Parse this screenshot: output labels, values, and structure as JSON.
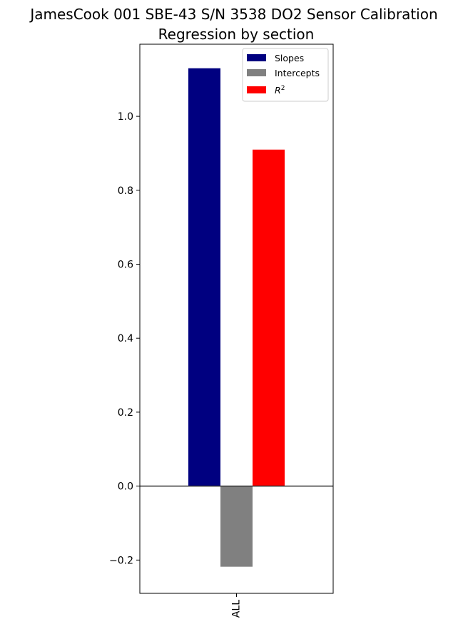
{
  "chart_data": {
    "type": "bar",
    "title": "JamesCook 001 SBE-43 S/N 3538 DO2 Sensor Calibration",
    "subtitle": "Regression by section",
    "categories": [
      "ALL"
    ],
    "series": [
      {
        "name": "Slopes",
        "color": "#000080",
        "values": [
          1.13
        ]
      },
      {
        "name": "Intercepts",
        "color": "#808080",
        "values": [
          -0.218
        ]
      },
      {
        "name": "R",
        "name_superscript": "2",
        "color": "#ff0000",
        "values": [
          0.91
        ]
      }
    ],
    "xlabel": "",
    "ylabel": "",
    "ylim": [
      -0.29,
      1.195
    ],
    "yticks": [
      "−0.2",
      "0.0",
      "0.2",
      "0.4",
      "0.6",
      "0.8",
      "1.0"
    ],
    "ytick_values": [
      -0.2,
      0.0,
      0.2,
      0.4,
      0.6,
      0.8,
      1.0
    ],
    "zero_line": true,
    "grid": false,
    "legend_position": "top-right"
  }
}
